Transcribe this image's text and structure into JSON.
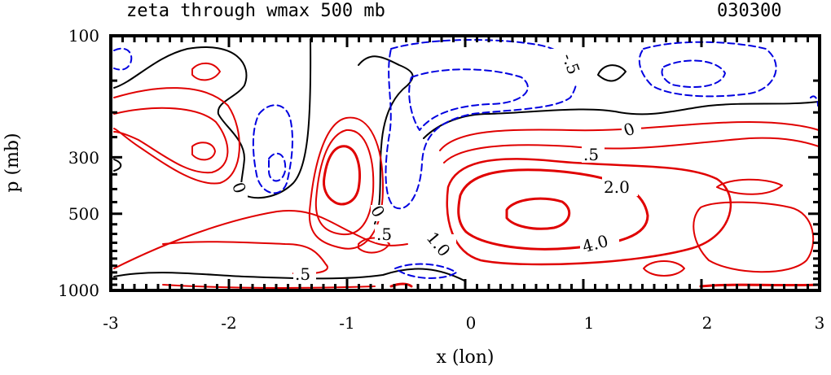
{
  "chart_data": {
    "type": "contour",
    "title": "zeta through wmax 500 mb",
    "date_label": "030300",
    "xlabel": "x (lon)",
    "ylabel": "p (mb)",
    "xlim": [
      -3,
      3
    ],
    "ylim": [
      100,
      1000
    ],
    "y_scale": "log",
    "x_ticks": [
      "-3",
      "-2",
      "-1",
      "0",
      "1",
      "2",
      "3"
    ],
    "y_ticks": [
      "100",
      "300",
      "500",
      "1000"
    ],
    "contour_labels": [
      ".5",
      "2.0",
      "4.0",
      "0",
      "-.5",
      "0",
      "0",
      ".5",
      "1.0",
      ".5"
    ],
    "colors": {
      "positive": "#e00000",
      "zero": "#000000",
      "negative": "#0000e0"
    }
  }
}
